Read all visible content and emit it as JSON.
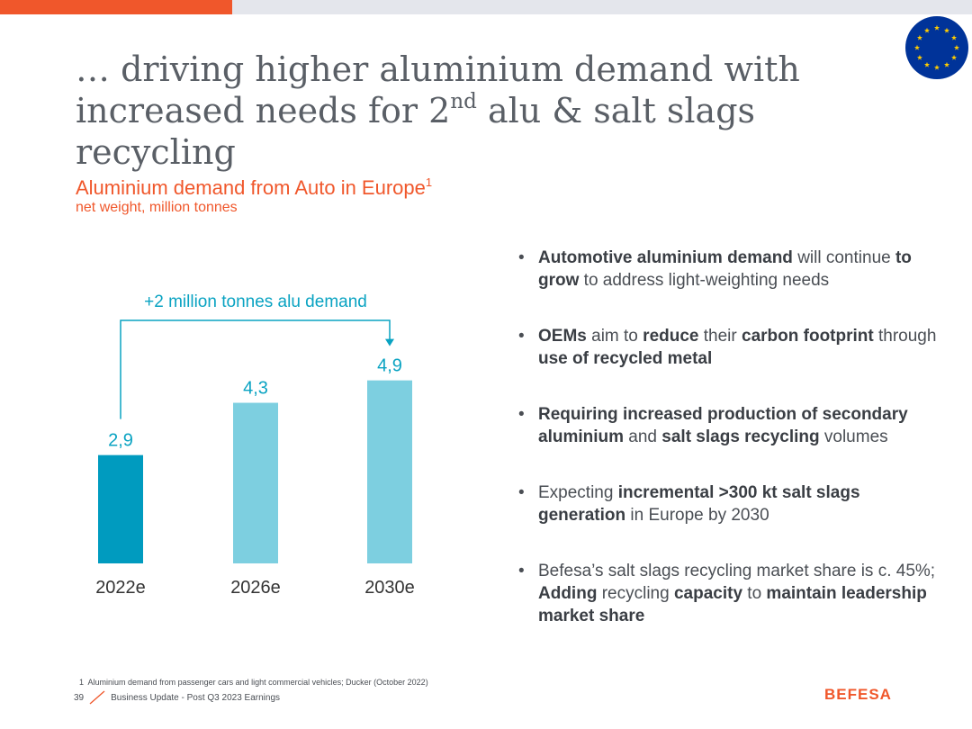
{
  "colors": {
    "accent": "#f0572b",
    "bar_dark": "#009bbf",
    "bar_light": "#7dcfe0",
    "annotation": "#0aa3c2",
    "flag_blue": "#003399",
    "flag_star": "#ffcc00"
  },
  "title": {
    "line1": "… driving higher aluminium demand with",
    "line2_before": "increased needs for 2",
    "line2_sup": "nd",
    "line2_after": " alu & salt slags recycling"
  },
  "chart_data": {
    "type": "bar",
    "title": "Aluminium demand from Auto in Europe",
    "title_footnote_marker": "1",
    "subtitle": "net weight, million tonnes",
    "categories": [
      "2022e",
      "2026e",
      "2030e"
    ],
    "values": [
      2.9,
      4.3,
      4.9
    ],
    "value_labels": [
      "2,9",
      "4,3",
      "4,9"
    ],
    "ylim": [
      0,
      5
    ],
    "grid": false,
    "annotation": "+2 million tonnes alu demand"
  },
  "bullets": [
    [
      {
        "t": "Automotive aluminium demand",
        "b": true
      },
      {
        "t": " will continue ",
        "b": false
      },
      {
        "t": "to grow",
        "b": true
      },
      {
        "t": " to address light-weighting needs",
        "b": false
      }
    ],
    [
      {
        "t": "OEMs",
        "b": true
      },
      {
        "t": " aim to ",
        "b": false
      },
      {
        "t": "reduce",
        "b": true
      },
      {
        "t": " their ",
        "b": false
      },
      {
        "t": "carbon footprint",
        "b": true
      },
      {
        "t": " through ",
        "b": false
      },
      {
        "t": "use of recycled metal",
        "b": true
      }
    ],
    [
      {
        "t": "Requiring increased production of secondary aluminium",
        "b": true
      },
      {
        "t": " and ",
        "b": false
      },
      {
        "t": "salt slags recycling",
        "b": true
      },
      {
        "t": " volumes",
        "b": false
      }
    ],
    [
      {
        "t": "Expecting ",
        "b": false
      },
      {
        "t": "incremental >300 kt salt slags generation",
        "b": true
      },
      {
        "t": " in Europe by 2030",
        "b": false
      }
    ],
    [
      {
        "t": "Befesa’s salt slags recycling market share is c. 45%; ",
        "b": false
      },
      {
        "t": "Adding",
        "b": true
      },
      {
        "t": " recycling ",
        "b": false
      },
      {
        "t": "capacity",
        "b": true
      },
      {
        "t": " to ",
        "b": false
      },
      {
        "t": "maintain leadership market share",
        "b": true
      }
    ]
  ],
  "footer": {
    "footnote_marker": "1",
    "footnote": "Aluminium demand from passenger cars and light commercial vehicles; Ducker (October 2022)",
    "page_number": "39",
    "doc_title": "Business Update - Post Q3 2023 Earnings",
    "logo": "BEFESA"
  }
}
